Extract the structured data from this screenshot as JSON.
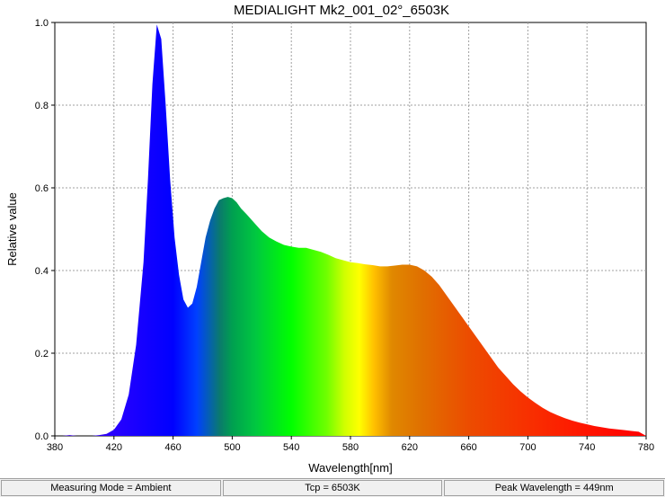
{
  "chart_data": {
    "type": "area",
    "title": "MEDIALIGHT Mk2_001_02°_6503K",
    "xlabel": "Wavelength[nm]",
    "ylabel": "Relative value",
    "xlim": [
      380,
      780
    ],
    "ylim": [
      0,
      1.0
    ],
    "x_ticks": [
      380,
      420,
      460,
      500,
      540,
      580,
      620,
      660,
      700,
      740,
      780
    ],
    "y_ticks": [
      0.0,
      0.2,
      0.4,
      0.6,
      0.8,
      1.0
    ],
    "x_tick_labels": [
      "380",
      "420",
      "460",
      "500",
      "540",
      "580",
      "620",
      "660",
      "700",
      "740",
      "780"
    ],
    "y_tick_labels": [
      "0.0",
      "0.2",
      "0.4",
      "0.6",
      "0.8",
      "1.0"
    ],
    "grid": true,
    "fill": "spectrum-gradient",
    "x": [
      380,
      385,
      390,
      395,
      400,
      405,
      410,
      415,
      420,
      425,
      430,
      435,
      440,
      443,
      446,
      449,
      452,
      455,
      458,
      461,
      464,
      467,
      470,
      473,
      476,
      479,
      482,
      485,
      488,
      491,
      494,
      497,
      500,
      503,
      506,
      510,
      515,
      520,
      525,
      530,
      535,
      540,
      545,
      550,
      555,
      560,
      565,
      570,
      575,
      580,
      585,
      590,
      595,
      600,
      605,
      610,
      615,
      620,
      625,
      630,
      635,
      640,
      645,
      650,
      655,
      660,
      665,
      670,
      675,
      680,
      685,
      690,
      695,
      700,
      705,
      710,
      715,
      720,
      725,
      730,
      735,
      740,
      745,
      750,
      755,
      760,
      765,
      770,
      775,
      780
    ],
    "y": [
      0.0,
      0.0,
      0.002,
      0.0,
      0.0,
      0.0,
      0.002,
      0.005,
      0.015,
      0.04,
      0.1,
      0.22,
      0.42,
      0.62,
      0.85,
      0.995,
      0.96,
      0.8,
      0.62,
      0.48,
      0.39,
      0.33,
      0.31,
      0.32,
      0.36,
      0.42,
      0.48,
      0.52,
      0.55,
      0.57,
      0.575,
      0.578,
      0.575,
      0.565,
      0.55,
      0.535,
      0.515,
      0.495,
      0.48,
      0.47,
      0.462,
      0.458,
      0.455,
      0.455,
      0.45,
      0.445,
      0.438,
      0.43,
      0.425,
      0.42,
      0.418,
      0.415,
      0.413,
      0.41,
      0.41,
      0.412,
      0.414,
      0.414,
      0.41,
      0.4,
      0.385,
      0.365,
      0.34,
      0.315,
      0.29,
      0.265,
      0.24,
      0.215,
      0.19,
      0.165,
      0.145,
      0.125,
      0.108,
      0.093,
      0.08,
      0.068,
      0.058,
      0.05,
      0.043,
      0.037,
      0.032,
      0.028,
      0.024,
      0.021,
      0.018,
      0.016,
      0.014,
      0.012,
      0.01,
      0.0
    ],
    "colors": {
      "background": "#ffffff",
      "grid": "#a0a0a0",
      "outline": "#c8c8c8"
    }
  },
  "status": {
    "measuring_mode": "Measuring Mode = Ambient",
    "tcp": "Tcp = 6503K",
    "peak_wavelength": "Peak Wavelength = 449nm"
  }
}
